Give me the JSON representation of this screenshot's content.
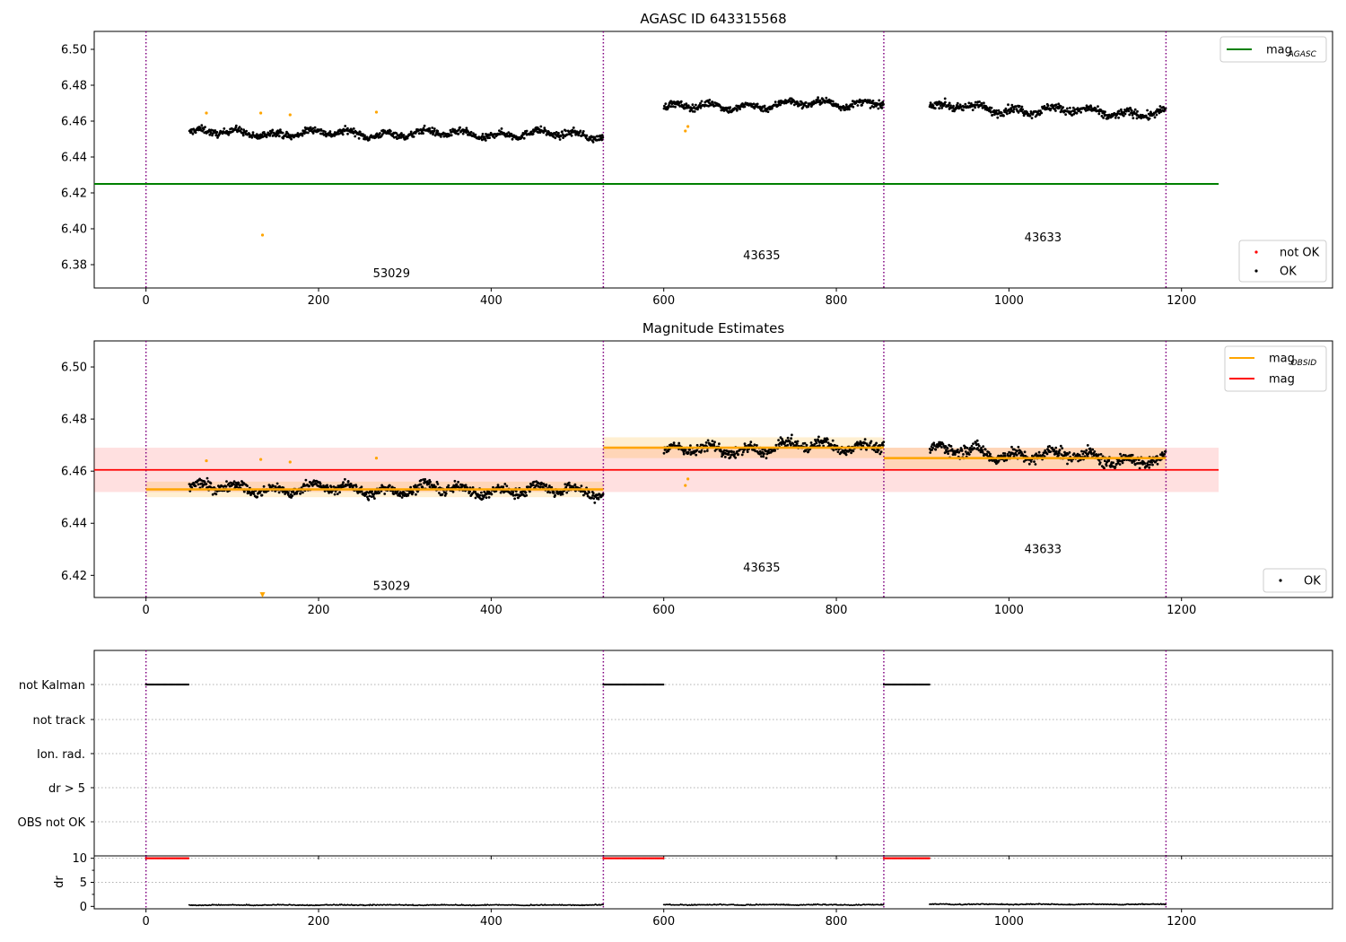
{
  "colors": {
    "ok": "#000000",
    "not_ok": "#ff0000",
    "flagged_points": "#ffa500",
    "mag_agasc": "#008000",
    "mag_obsid": "#ffa500",
    "mag": "#ff0000",
    "obsid_boundary": "#800080",
    "grid": "#b0b0b0"
  },
  "chart_data": [
    {
      "type": "scatter",
      "title": "AGASC ID 643315568",
      "xlim": [
        -60,
        1375
      ],
      "ylim": [
        6.367,
        6.51
      ],
      "xticks": [
        0,
        200,
        400,
        600,
        800,
        1000,
        1200
      ],
      "yticks": [
        6.38,
        6.4,
        6.42,
        6.44,
        6.46,
        6.48,
        6.5
      ],
      "boundaries": [
        0,
        530,
        855,
        1182
      ],
      "obsids": [
        {
          "label": "53029",
          "x": 263,
          "y": 6.373
        },
        {
          "label": "43635",
          "x": 692,
          "y": 6.383
        },
        {
          "label": "43633",
          "x": 1018,
          "y": 6.393
        }
      ],
      "mag_agasc": {
        "value": 6.425,
        "x_range": [
          -60,
          1243
        ]
      },
      "segments": [
        {
          "x_start": 50,
          "x_end": 530,
          "mean": 6.453,
          "noise": 0.0025,
          "trend": -0.001
        },
        {
          "x_start": 600,
          "x_end": 855,
          "mean": 6.469,
          "noise": 0.0025,
          "trend": 0.003
        },
        {
          "x_start": 908,
          "x_end": 1182,
          "mean": 6.466,
          "noise": 0.003,
          "trend": -0.004
        }
      ],
      "flagged": [
        {
          "x": 70,
          "y": 6.4645
        },
        {
          "x": 133,
          "y": 6.4645
        },
        {
          "x": 167,
          "y": 6.4635
        },
        {
          "x": 267,
          "y": 6.465
        },
        {
          "x": 135,
          "y": 6.3965
        },
        {
          "x": 625,
          "y": 6.4545
        },
        {
          "x": 628,
          "y": 6.457
        }
      ],
      "legends": [
        {
          "position": "top-right",
          "entries": [
            {
              "kind": "line",
              "color_key": "mag_agasc",
              "label": "mag",
              "sub": "AGASC"
            }
          ]
        },
        {
          "position": "bottom-right",
          "entries": [
            {
              "kind": "dot",
              "color_key": "not_ok",
              "label": "not OK"
            },
            {
              "kind": "dot",
              "color_key": "ok",
              "label": "OK"
            }
          ]
        }
      ]
    },
    {
      "type": "scatter",
      "title": "Magnitude Estimates",
      "xlim": [
        -60,
        1375
      ],
      "ylim": [
        6.4115,
        6.51
      ],
      "xticks": [
        0,
        200,
        400,
        600,
        800,
        1000,
        1200
      ],
      "yticks": [
        6.42,
        6.44,
        6.46,
        6.48,
        6.5
      ],
      "boundaries": [
        0,
        530,
        855,
        1182
      ],
      "obsids": [
        {
          "label": "53029",
          "x": 263,
          "y": 6.4145
        },
        {
          "label": "43635",
          "x": 692,
          "y": 6.4215
        },
        {
          "label": "43633",
          "x": 1018,
          "y": 6.4285
        }
      ],
      "mag": {
        "value": 6.4605,
        "band": [
          6.452,
          6.469
        ],
        "x_range": [
          -60,
          1243
        ]
      },
      "mag_obsid": [
        {
          "x_start": 0,
          "x_end": 530,
          "value": 6.453,
          "band": [
            6.45,
            6.456
          ]
        },
        {
          "x_start": 530,
          "x_end": 855,
          "value": 6.469,
          "band": [
            6.465,
            6.473
          ]
        },
        {
          "x_start": 855,
          "x_end": 1182,
          "value": 6.465,
          "band": [
            6.461,
            6.469
          ]
        }
      ],
      "segments": [
        {
          "x_start": 50,
          "x_end": 530,
          "mean": 6.453,
          "noise": 0.0025,
          "trend": -0.001
        },
        {
          "x_start": 600,
          "x_end": 855,
          "mean": 6.469,
          "noise": 0.0025,
          "trend": 0.003
        },
        {
          "x_start": 908,
          "x_end": 1182,
          "mean": 6.466,
          "noise": 0.003,
          "trend": -0.004
        }
      ],
      "flagged": [
        {
          "x": 70,
          "y": 6.464
        },
        {
          "x": 133,
          "y": 6.4645
        },
        {
          "x": 167,
          "y": 6.4635
        },
        {
          "x": 267,
          "y": 6.465
        },
        {
          "x": 625,
          "y": 6.4545
        },
        {
          "x": 628,
          "y": 6.457
        }
      ],
      "offscale_marker": {
        "x": 135,
        "y": 6.4125
      },
      "legends": [
        {
          "position": "top-right",
          "entries": [
            {
              "kind": "line",
              "color_key": "mag_obsid",
              "label": "mag",
              "sub": "OBSID"
            },
            {
              "kind": "line",
              "color_key": "mag",
              "label": "mag"
            }
          ]
        },
        {
          "position": "bottom-right",
          "entries": [
            {
              "kind": "dot",
              "color_key": "ok",
              "label": "OK"
            }
          ]
        }
      ]
    },
    {
      "type": "scatter",
      "title": "",
      "categories": [
        "not Kalman",
        "not track",
        "Ion. rad.",
        "dr > 5",
        "OBS not OK"
      ],
      "xlim": [
        -60,
        1375
      ],
      "boundaries": [
        0,
        530,
        855,
        1182
      ],
      "flag_rows": [
        {
          "category": "not Kalman",
          "x_ranges": [
            [
              0,
              50
            ],
            [
              530,
              600
            ],
            [
              855,
              908
            ]
          ]
        },
        {
          "category": "not track",
          "x_ranges": []
        },
        {
          "category": "Ion. rad.",
          "x_ranges": []
        },
        {
          "category": "dr > 5",
          "x_ranges": []
        },
        {
          "category": "OBS not OK",
          "x_ranges": []
        }
      ]
    },
    {
      "type": "scatter",
      "title": "",
      "ylabel": "dr",
      "xlim": [
        -60,
        1375
      ],
      "ylim": [
        -0.5,
        10.5
      ],
      "xticks": [
        0,
        200,
        400,
        600,
        800,
        1000,
        1200
      ],
      "yticks": [
        0,
        5,
        10
      ],
      "boundaries": [
        0,
        530,
        855,
        1182
      ],
      "not_ok": {
        "value": 10,
        "x_ranges": [
          [
            0,
            50
          ],
          [
            530,
            600
          ],
          [
            855,
            908
          ]
        ]
      },
      "ok_segments": [
        {
          "x_start": 50,
          "x_end": 530,
          "level": 0.15
        },
        {
          "x_start": 600,
          "x_end": 855,
          "level": 0.2
        },
        {
          "x_start": 908,
          "x_end": 1182,
          "level": 0.3
        }
      ]
    }
  ]
}
